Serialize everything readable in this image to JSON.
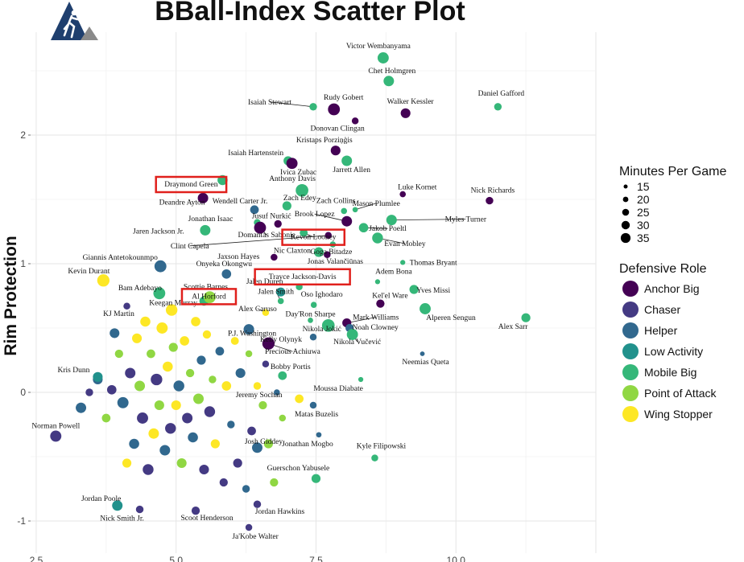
{
  "chart_data": {
    "type": "scatter",
    "title": "BBall-Index Scatter Plot",
    "ylabel": "Rim Protection",
    "xlabel": "",
    "xlim": [
      2.4,
      12.5
    ],
    "ylim": [
      -1.25,
      2.8
    ],
    "x_ticks": [
      2.5,
      5.0,
      7.5,
      10.0
    ],
    "x_tick_labels": [
      "2.5",
      "5.0",
      "7.5",
      "10.0"
    ],
    "y_ticks": [
      -1,
      0,
      1,
      2
    ],
    "grid": true,
    "legend_placement": "right",
    "size_legend": {
      "title": "Minutes Per Game",
      "values": [
        15,
        20,
        25,
        30,
        35
      ],
      "labels": [
        "15",
        "20",
        "25",
        "30",
        "35"
      ]
    },
    "color_legend": {
      "title": "Defensive Role",
      "roles": [
        {
          "name": "Anchor Big",
          "color": "#440154"
        },
        {
          "name": "Chaser",
          "color": "#443a83"
        },
        {
          "name": "Helper",
          "color": "#31688e"
        },
        {
          "name": "Low Activity",
          "color": "#21918c"
        },
        {
          "name": "Mobile Big",
          "color": "#35b779"
        },
        {
          "name": "Point of Attack",
          "color": "#90d743"
        },
        {
          "name": "Wing Stopper",
          "color": "#fde725"
        }
      ]
    },
    "highlighted": [
      "Draymond Green",
      "Kevon Looney",
      "Al Horford",
      "Trayce Jackson-Davis"
    ],
    "labeled_points": [
      {
        "name": "Victor Wembanyama",
        "x": 8.7,
        "y": 2.6,
        "role": "Mobile Big",
        "mpg": 32
      },
      {
        "name": "Chet Holmgren",
        "x": 8.8,
        "y": 2.42,
        "role": "Mobile Big",
        "mpg": 30
      },
      {
        "name": "Rudy Gobert",
        "x": 7.82,
        "y": 2.2,
        "role": "Anchor Big",
        "mpg": 34
      },
      {
        "name": "Walker Kessler",
        "x": 9.1,
        "y": 2.17,
        "role": "Anchor Big",
        "mpg": 28
      },
      {
        "name": "Daniel Gafford",
        "x": 10.75,
        "y": 2.22,
        "role": "Mobile Big",
        "mpg": 22
      },
      {
        "name": "Isaiah Stewart",
        "x": 7.45,
        "y": 2.22,
        "role": "Mobile Big",
        "mpg": 22
      },
      {
        "name": "Donovan Clingan",
        "x": 8.2,
        "y": 2.11,
        "role": "Anchor Big",
        "mpg": 20
      },
      {
        "name": "Kristaps Porziņģis",
        "x": 7.85,
        "y": 1.88,
        "role": "Anchor Big",
        "mpg": 28
      },
      {
        "name": "Isaiah Hartenstein",
        "x": 7.0,
        "y": 1.8,
        "role": "Mobile Big",
        "mpg": 26
      },
      {
        "name": "Ivica Zubac",
        "x": 7.07,
        "y": 1.78,
        "role": "Anchor Big",
        "mpg": 32
      },
      {
        "name": "Jarrett Allen",
        "x": 8.05,
        "y": 1.8,
        "role": "Mobile Big",
        "mpg": 30
      },
      {
        "name": "Draymond Green",
        "x": 5.83,
        "y": 1.65,
        "role": "Mobile Big",
        "mpg": 29
      },
      {
        "name": "Anthony Davis",
        "x": 7.25,
        "y": 1.57,
        "role": "Mobile Big",
        "mpg": 36
      },
      {
        "name": "Luke Kornet",
        "x": 9.05,
        "y": 1.54,
        "role": "Anchor Big",
        "mpg": 18
      },
      {
        "name": "Nick Richards",
        "x": 10.6,
        "y": 1.49,
        "role": "Anchor Big",
        "mpg": 22
      },
      {
        "name": "Deandre Ayton",
        "x": 5.48,
        "y": 1.51,
        "role": "Anchor Big",
        "mpg": 30
      },
      {
        "name": "Wendell Carter Jr.",
        "x": 6.4,
        "y": 1.42,
        "role": "Helper",
        "mpg": 25
      },
      {
        "name": "Zach Edey",
        "x": 6.98,
        "y": 1.45,
        "role": "Mobile Big",
        "mpg": 26
      },
      {
        "name": "Zach Collins",
        "x": 8.0,
        "y": 1.41,
        "role": "Mobile Big",
        "mpg": 18
      },
      {
        "name": "Mason Plumlee",
        "x": 8.2,
        "y": 1.42,
        "role": "Mobile Big",
        "mpg": 16
      },
      {
        "name": "Jonathan Isaac",
        "x": 6.45,
        "y": 1.32,
        "role": "Mobile Big",
        "mpg": 20
      },
      {
        "name": "Jusuf Nurkić",
        "x": 6.82,
        "y": 1.31,
        "role": "Anchor Big",
        "mpg": 22
      },
      {
        "name": "Brook Lopez",
        "x": 8.05,
        "y": 1.33,
        "role": "Anchor Big",
        "mpg": 30
      },
      {
        "name": "Myles Turner",
        "x": 8.85,
        "y": 1.34,
        "role": "Mobile Big",
        "mpg": 30
      },
      {
        "name": "Jaren Jackson Jr.",
        "x": 5.52,
        "y": 1.26,
        "role": "Mobile Big",
        "mpg": 30
      },
      {
        "name": "Domantas Sabonis",
        "x": 6.5,
        "y": 1.28,
        "role": "Anchor Big",
        "mpg": 34
      },
      {
        "name": "Kevon Looney",
        "x": 7.28,
        "y": 1.24,
        "role": "Mobile Big",
        "mpg": 23
      },
      {
        "name": "Jakob Poeltl",
        "x": 8.35,
        "y": 1.28,
        "role": "Mobile Big",
        "mpg": 27
      },
      {
        "name": "Clint Capela",
        "x": 7.72,
        "y": 1.22,
        "role": "Anchor Big",
        "mpg": 20
      },
      {
        "name": "Goga Bitadze",
        "x": 7.8,
        "y": 1.15,
        "role": "Mobile Big",
        "mpg": 18
      },
      {
        "name": "Evan Mobley",
        "x": 8.6,
        "y": 1.2,
        "role": "Mobile Big",
        "mpg": 31
      },
      {
        "name": "Nic Claxton",
        "x": 7.55,
        "y": 1.09,
        "role": "Mobile Big",
        "mpg": 28
      },
      {
        "name": "Jaxson Hayes",
        "x": 6.75,
        "y": 1.05,
        "role": "Anchor Big",
        "mpg": 20
      },
      {
        "name": "Jonas Valančiūnas",
        "x": 7.7,
        "y": 1.07,
        "role": "Anchor Big",
        "mpg": 20
      },
      {
        "name": "Thomas Bryant",
        "x": 9.05,
        "y": 1.01,
        "role": "Mobile Big",
        "mpg": 15
      },
      {
        "name": "Giannis Antetokounmpo",
        "x": 4.72,
        "y": 0.98,
        "role": "Helper",
        "mpg": 34
      },
      {
        "name": "Onyeka Okongwu",
        "x": 5.9,
        "y": 0.92,
        "role": "Helper",
        "mpg": 27
      },
      {
        "name": "Adem Bona",
        "x": 8.6,
        "y": 0.86,
        "role": "Mobile Big",
        "mpg": 15
      },
      {
        "name": "Kevin Durant",
        "x": 3.7,
        "y": 0.87,
        "role": "Wing Stopper",
        "mpg": 35
      },
      {
        "name": "Al Horford",
        "x": 5.5,
        "y": 0.71,
        "role": "Mobile Big",
        "mpg": 27
      },
      {
        "name": "Jalen Duren",
        "x": 6.87,
        "y": 0.78,
        "role": "Low Activity",
        "mpg": 26
      },
      {
        "name": "Trayce Jackson-Davis",
        "x": 7.2,
        "y": 0.82,
        "role": "Mobile Big",
        "mpg": 20
      },
      {
        "name": "Yves Missi",
        "x": 9.25,
        "y": 0.8,
        "role": "Mobile Big",
        "mpg": 26
      },
      {
        "name": "Bam Adebayo",
        "x": 4.7,
        "y": 0.77,
        "role": "Mobile Big",
        "mpg": 34
      },
      {
        "name": "Scottie Barnes",
        "x": 5.6,
        "y": 0.74,
        "role": "Point of Attack",
        "mpg": 34
      },
      {
        "name": "Jalen Smith",
        "x": 6.87,
        "y": 0.71,
        "role": "Mobile Big",
        "mpg": 18
      },
      {
        "name": "Oso Ighodaro",
        "x": 7.46,
        "y": 0.68,
        "role": "Mobile Big",
        "mpg": 18
      },
      {
        "name": "Kel'el Ware",
        "x": 8.65,
        "y": 0.69,
        "role": "Anchor Big",
        "mpg": 24
      },
      {
        "name": "Alperen Sengun",
        "x": 9.45,
        "y": 0.65,
        "role": "Mobile Big",
        "mpg": 32
      },
      {
        "name": "KJ Martin",
        "x": 4.12,
        "y": 0.67,
        "role": "Chaser",
        "mpg": 20
      },
      {
        "name": "Keegan Murray",
        "x": 4.92,
        "y": 0.64,
        "role": "Wing Stopper",
        "mpg": 33
      },
      {
        "name": "Alex Caruso",
        "x": 6.6,
        "y": 0.62,
        "role": "Wing Stopper",
        "mpg": 20
      },
      {
        "name": "Day'Ron Sharpe",
        "x": 7.4,
        "y": 0.56,
        "role": "Mobile Big",
        "mpg": 16
      },
      {
        "name": "Mark Williams",
        "x": 8.05,
        "y": 0.54,
        "role": "Anchor Big",
        "mpg": 26
      },
      {
        "name": "Noah Clowney",
        "x": 8.1,
        "y": 0.5,
        "role": "Helper",
        "mpg": 24
      },
      {
        "name": "Alex Sarr",
        "x": 11.25,
        "y": 0.58,
        "role": "Mobile Big",
        "mpg": 26
      },
      {
        "name": "P.J. Washington",
        "x": 6.3,
        "y": 0.49,
        "role": "Helper",
        "mpg": 30
      },
      {
        "name": "Kelly Olynyk",
        "x": 7.45,
        "y": 0.43,
        "role": "Helper",
        "mpg": 20
      },
      {
        "name": "Nikola Jokić",
        "x": 7.72,
        "y": 0.52,
        "role": "Mobile Big",
        "mpg": 36
      },
      {
        "name": "Nikola Vučević",
        "x": 8.15,
        "y": 0.45,
        "role": "Mobile Big",
        "mpg": 32
      },
      {
        "name": "Precious Achiuwa",
        "x": 6.65,
        "y": 0.38,
        "role": "Anchor Big",
        "mpg": 35
      },
      {
        "name": "Neemias Queta",
        "x": 9.4,
        "y": 0.3,
        "role": "Helper",
        "mpg": 14
      },
      {
        "name": "Kris Dunn",
        "x": 3.6,
        "y": 0.12,
        "role": "Low Activity",
        "mpg": 28
      },
      {
        "name": "Bobby Portis",
        "x": 6.9,
        "y": 0.13,
        "role": "Mobile Big",
        "mpg": 25
      },
      {
        "name": "Moussa Diabate",
        "x": 8.3,
        "y": 0.1,
        "role": "Mobile Big",
        "mpg": 15
      },
      {
        "name": "Jeremy Sochan",
        "x": 7.2,
        "y": -0.05,
        "role": "Wing Stopper",
        "mpg": 25
      },
      {
        "name": "Matas Buzelis",
        "x": 7.45,
        "y": -0.1,
        "role": "Helper",
        "mpg": 20
      },
      {
        "name": "Norman Powell",
        "x": 2.85,
        "y": -0.34,
        "role": "Chaser",
        "mpg": 32
      },
      {
        "name": "Jonathan Mogbo",
        "x": 7.55,
        "y": -0.33,
        "role": "Helper",
        "mpg": 16
      },
      {
        "name": "Kyle Filipowski",
        "x": 8.55,
        "y": -0.51,
        "role": "Mobile Big",
        "mpg": 20
      },
      {
        "name": "Josh Giddey",
        "x": 6.45,
        "y": -0.43,
        "role": "Helper",
        "mpg": 30
      },
      {
        "name": "Guerschon Yabusele",
        "x": 7.5,
        "y": -0.67,
        "role": "Mobile Big",
        "mpg": 26
      },
      {
        "name": "Jordan Poole",
        "x": 3.95,
        "y": -0.88,
        "role": "Low Activity",
        "mpg": 30
      },
      {
        "name": "Nick Smith Jr.",
        "x": 4.35,
        "y": -0.91,
        "role": "Chaser",
        "mpg": 22
      },
      {
        "name": "Scoot Henderson",
        "x": 5.35,
        "y": -0.92,
        "role": "Chaser",
        "mpg": 24
      },
      {
        "name": "Jordan Hawkins",
        "x": 6.45,
        "y": -0.87,
        "role": "Chaser",
        "mpg": 22
      },
      {
        "name": "Ja'Kobe Walter",
        "x": 6.3,
        "y": -1.05,
        "role": "Chaser",
        "mpg": 20
      }
    ],
    "background_points": [
      {
        "x": 3.3,
        "y": -0.12,
        "role": "Helper",
        "mpg": 30
      },
      {
        "x": 3.45,
        "y": 0.0,
        "role": "Chaser",
        "mpg": 22
      },
      {
        "x": 3.6,
        "y": 0.1,
        "role": "Helper",
        "mpg": 28
      },
      {
        "x": 3.75,
        "y": -0.2,
        "role": "Point of Attack",
        "mpg": 25
      },
      {
        "x": 3.85,
        "y": 0.02,
        "role": "Chaser",
        "mpg": 27
      },
      {
        "x": 3.9,
        "y": 0.46,
        "role": "Helper",
        "mpg": 28
      },
      {
        "x": 3.98,
        "y": 0.3,
        "role": "Point of Attack",
        "mpg": 24
      },
      {
        "x": 4.05,
        "y": -0.08,
        "role": "Helper",
        "mpg": 32
      },
      {
        "x": 4.12,
        "y": -0.55,
        "role": "Wing Stopper",
        "mpg": 26
      },
      {
        "x": 4.18,
        "y": 0.15,
        "role": "Chaser",
        "mpg": 30
      },
      {
        "x": 4.25,
        "y": -0.4,
        "role": "Helper",
        "mpg": 29
      },
      {
        "x": 4.3,
        "y": 0.42,
        "role": "Wing Stopper",
        "mpg": 28
      },
      {
        "x": 4.35,
        "y": 0.05,
        "role": "Point of Attack",
        "mpg": 30
      },
      {
        "x": 4.4,
        "y": -0.2,
        "role": "Chaser",
        "mpg": 32
      },
      {
        "x": 4.45,
        "y": 0.55,
        "role": "Wing Stopper",
        "mpg": 29
      },
      {
        "x": 4.5,
        "y": -0.6,
        "role": "Chaser",
        "mpg": 31
      },
      {
        "x": 4.55,
        "y": 0.3,
        "role": "Point of Attack",
        "mpg": 25
      },
      {
        "x": 4.6,
        "y": -0.32,
        "role": "Wing Stopper",
        "mpg": 30
      },
      {
        "x": 4.65,
        "y": 0.1,
        "role": "Chaser",
        "mpg": 33
      },
      {
        "x": 4.7,
        "y": -0.1,
        "role": "Point of Attack",
        "mpg": 28
      },
      {
        "x": 4.75,
        "y": 0.5,
        "role": "Wing Stopper",
        "mpg": 32
      },
      {
        "x": 4.8,
        "y": -0.45,
        "role": "Helper",
        "mpg": 30
      },
      {
        "x": 4.85,
        "y": 0.2,
        "role": "Wing Stopper",
        "mpg": 29
      },
      {
        "x": 4.9,
        "y": -0.28,
        "role": "Chaser",
        "mpg": 31
      },
      {
        "x": 4.95,
        "y": 0.35,
        "role": "Point of Attack",
        "mpg": 26
      },
      {
        "x": 5.0,
        "y": -0.1,
        "role": "Wing Stopper",
        "mpg": 28
      },
      {
        "x": 5.05,
        "y": 0.05,
        "role": "Helper",
        "mpg": 31
      },
      {
        "x": 5.1,
        "y": -0.55,
        "role": "Point of Attack",
        "mpg": 28
      },
      {
        "x": 5.15,
        "y": 0.4,
        "role": "Wing Stopper",
        "mpg": 27
      },
      {
        "x": 5.2,
        "y": -0.2,
        "role": "Chaser",
        "mpg": 30
      },
      {
        "x": 5.25,
        "y": 0.15,
        "role": "Point of Attack",
        "mpg": 24
      },
      {
        "x": 5.3,
        "y": -0.35,
        "role": "Helper",
        "mpg": 29
      },
      {
        "x": 5.35,
        "y": 0.55,
        "role": "Wing Stopper",
        "mpg": 27
      },
      {
        "x": 5.4,
        "y": -0.05,
        "role": "Point of Attack",
        "mpg": 30
      },
      {
        "x": 5.45,
        "y": 0.25,
        "role": "Helper",
        "mpg": 26
      },
      {
        "x": 5.5,
        "y": -0.6,
        "role": "Chaser",
        "mpg": 28
      },
      {
        "x": 5.55,
        "y": 0.45,
        "role": "Wing Stopper",
        "mpg": 24
      },
      {
        "x": 5.6,
        "y": -0.15,
        "role": "Chaser",
        "mpg": 31
      },
      {
        "x": 5.65,
        "y": 0.1,
        "role": "Point of Attack",
        "mpg": 22
      },
      {
        "x": 5.7,
        "y": -0.4,
        "role": "Wing Stopper",
        "mpg": 26
      },
      {
        "x": 5.78,
        "y": 0.32,
        "role": "Helper",
        "mpg": 25
      },
      {
        "x": 5.85,
        "y": -0.7,
        "role": "Chaser",
        "mpg": 24
      },
      {
        "x": 5.9,
        "y": 0.05,
        "role": "Wing Stopper",
        "mpg": 27
      },
      {
        "x": 5.98,
        "y": -0.25,
        "role": "Helper",
        "mpg": 22
      },
      {
        "x": 6.05,
        "y": 0.4,
        "role": "Wing Stopper",
        "mpg": 23
      },
      {
        "x": 6.1,
        "y": -0.55,
        "role": "Chaser",
        "mpg": 26
      },
      {
        "x": 6.15,
        "y": 0.15,
        "role": "Helper",
        "mpg": 28
      },
      {
        "x": 6.25,
        "y": -0.75,
        "role": "Helper",
        "mpg": 22
      },
      {
        "x": 6.3,
        "y": 0.3,
        "role": "Point of Attack",
        "mpg": 20
      },
      {
        "x": 6.35,
        "y": -0.3,
        "role": "Chaser",
        "mpg": 25
      },
      {
        "x": 6.45,
        "y": 0.05,
        "role": "Wing Stopper",
        "mpg": 22
      },
      {
        "x": 6.55,
        "y": -0.1,
        "role": "Point of Attack",
        "mpg": 24
      },
      {
        "x": 6.6,
        "y": 0.22,
        "role": "Chaser",
        "mpg": 20
      },
      {
        "x": 6.65,
        "y": -0.4,
        "role": "Point of Attack",
        "mpg": 26
      },
      {
        "x": 6.75,
        "y": -0.7,
        "role": "Point of Attack",
        "mpg": 24
      },
      {
        "x": 6.8,
        "y": 0.0,
        "role": "Helper",
        "mpg": 18
      },
      {
        "x": 6.9,
        "y": -0.2,
        "role": "Point of Attack",
        "mpg": 20
      }
    ]
  }
}
